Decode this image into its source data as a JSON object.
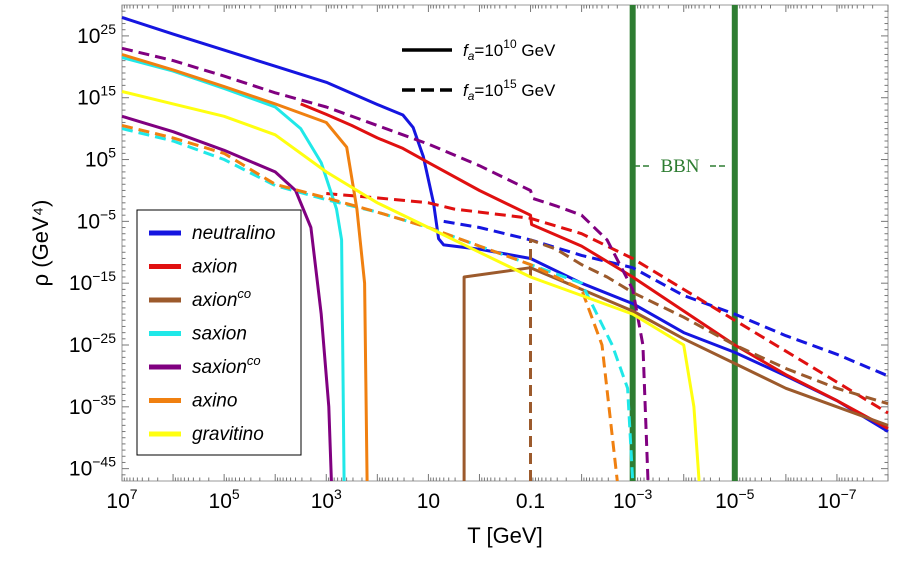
{
  "chart_data": {
    "type": "line",
    "title": "",
    "xlabel": "T  [GeV]",
    "ylabel": "ρ (GeV⁴)",
    "xscale": "log-reversed",
    "yscale": "log",
    "x_log10_range": [
      7,
      -8
    ],
    "y_log10_range": [
      -47,
      30
    ],
    "x_ticks": [
      {
        "base": "10",
        "exp": "7",
        "log10": 7
      },
      {
        "base": "10",
        "exp": "5",
        "log10": 5
      },
      {
        "base": "10",
        "exp": "3",
        "log10": 3
      },
      {
        "base": "10",
        "exp": "",
        "log10": 1
      },
      {
        "base": "0.1",
        "exp": "",
        "log10": -1
      },
      {
        "base": "10",
        "exp": "−3",
        "log10": -3
      },
      {
        "base": "10",
        "exp": "−5",
        "log10": -5
      },
      {
        "base": "10",
        "exp": "−7",
        "log10": -7
      }
    ],
    "y_ticks": [
      {
        "base": "10",
        "exp": "25",
        "log10": 25
      },
      {
        "base": "10",
        "exp": "15",
        "log10": 15
      },
      {
        "base": "10",
        "exp": "5",
        "log10": 5
      },
      {
        "base": "10",
        "exp": "−5",
        "log10": -5
      },
      {
        "base": "10",
        "exp": "−15",
        "log10": -15
      },
      {
        "base": "10",
        "exp": "−25",
        "log10": -25
      },
      {
        "base": "10",
        "exp": "−35",
        "log10": -35
      },
      {
        "base": "10",
        "exp": "−45",
        "log10": -45
      }
    ],
    "bbn": {
      "label": "BBN",
      "log10T_high": -3,
      "log10T_low": -5,
      "color": "#2e7d32"
    },
    "line_styles": [
      {
        "style": "solid",
        "label": "f",
        "sub": "a",
        "mid": "=10",
        "sup": "10",
        "unit": " GeV"
      },
      {
        "style": "dashed",
        "label": "f",
        "sub": "a",
        "mid": "=10",
        "sup": "15",
        "unit": " GeV"
      }
    ],
    "series": [
      {
        "name": "neutralino",
        "sup": "",
        "color": "#1515e0",
        "solid": [
          [
            7,
            28
          ],
          [
            6,
            25.3
          ],
          [
            5,
            22.7
          ],
          [
            4,
            20.1
          ],
          [
            3,
            17.5
          ],
          [
            2,
            13.9
          ],
          [
            1.5,
            12.2
          ],
          [
            1.3,
            10.2
          ],
          [
            1.1,
            5.5
          ],
          [
            0.9,
            -2
          ],
          [
            0.8,
            -7.8
          ],
          [
            0.7,
            -8.8
          ],
          [
            0,
            -9.5
          ],
          [
            -1,
            -11
          ],
          [
            -2,
            -15
          ],
          [
            -3,
            -18.3
          ],
          [
            -4,
            -23
          ],
          [
            -5,
            -26.2
          ],
          [
            -6,
            -30
          ],
          [
            -7,
            -34
          ],
          [
            -8,
            -39
          ]
        ],
        "dashed": [
          [
            0.7,
            -5
          ],
          [
            0,
            -6
          ],
          [
            -1,
            -8
          ],
          [
            -2,
            -10.5
          ],
          [
            -3,
            -12.5
          ],
          [
            -4,
            -17
          ],
          [
            -5,
            -20
          ],
          [
            -6,
            -23.5
          ],
          [
            -7,
            -26.5
          ],
          [
            -8,
            -30
          ]
        ]
      },
      {
        "name": "axion",
        "sup": "",
        "color": "#e01010",
        "solid": [
          [
            3.5,
            14
          ],
          [
            3,
            12.3
          ],
          [
            2.5,
            10.5
          ],
          [
            2,
            8.5
          ],
          [
            1.5,
            6.8
          ],
          [
            1,
            4.5
          ],
          [
            0,
            0
          ],
          [
            -1,
            -4
          ],
          [
            -1.02,
            -5.5
          ],
          [
            -2,
            -9
          ],
          [
            -3,
            -14
          ],
          [
            -4,
            -19.5
          ],
          [
            -5,
            -25
          ],
          [
            -6,
            -29.8
          ],
          [
            -7,
            -34
          ],
          [
            -8,
            -38.5
          ]
        ],
        "dashed": [
          [
            3,
            -0.5
          ],
          [
            2,
            -1.2
          ],
          [
            1,
            -2
          ],
          [
            0.5,
            -3
          ],
          [
            0,
            -3.5
          ],
          [
            -1,
            -4.5
          ],
          [
            -2,
            -7
          ],
          [
            -3,
            -11
          ],
          [
            -4,
            -16
          ],
          [
            -5,
            -21
          ],
          [
            -6,
            -26
          ],
          [
            -7,
            -31
          ],
          [
            -8,
            -36
          ]
        ]
      },
      {
        "name": "axion",
        "sup": "co",
        "color": "#9c5a2c",
        "solid": [
          [
            0.3,
            -47
          ],
          [
            0.3,
            -14
          ],
          [
            -1,
            -12.5
          ],
          [
            -2,
            -16
          ],
          [
            -3,
            -19.5
          ],
          [
            -4,
            -24
          ],
          [
            -5,
            -28
          ],
          [
            -6,
            -32
          ],
          [
            -7,
            -35
          ],
          [
            -8,
            -38
          ]
        ],
        "dashed": [
          [
            -1,
            -47
          ],
          [
            -1,
            -8
          ],
          [
            -1.5,
            -9.5
          ],
          [
            -2,
            -12
          ],
          [
            -2.5,
            -14
          ],
          [
            -3,
            -16.5
          ],
          [
            -4,
            -20.5
          ],
          [
            -5,
            -25
          ],
          [
            -6,
            -28.8
          ],
          [
            -7,
            -32
          ],
          [
            -8,
            -34.5
          ]
        ]
      },
      {
        "name": "saxion",
        "sup": "",
        "color": "#20e8e8",
        "solid": [
          [
            7,
            21.5
          ],
          [
            6,
            19.3
          ],
          [
            5,
            16.5
          ],
          [
            4,
            13.5
          ],
          [
            3.5,
            10
          ],
          [
            3.1,
            4.5
          ],
          [
            2.8,
            -3
          ],
          [
            2.7,
            -8
          ],
          [
            2.65,
            -47
          ]
        ],
        "dashed": [
          [
            7,
            10
          ],
          [
            6,
            8
          ],
          [
            5,
            5
          ],
          [
            4,
            0.8
          ],
          [
            3,
            -1.5
          ],
          [
            2,
            -3.5
          ],
          [
            1,
            -6
          ],
          [
            0,
            -9
          ],
          [
            -1,
            -12
          ],
          [
            -2,
            -15
          ],
          [
            -2.6,
            -25
          ],
          [
            -2.9,
            -32
          ],
          [
            -3,
            -47
          ]
        ]
      },
      {
        "name": "saxion",
        "sup": "co",
        "color": "#800080",
        "solid": [
          [
            7,
            12
          ],
          [
            6,
            9.5
          ],
          [
            5,
            6.5
          ],
          [
            4,
            3
          ],
          [
            3.6,
            0
          ],
          [
            3.3,
            -6
          ],
          [
            3.1,
            -20
          ],
          [
            2.95,
            -35
          ],
          [
            2.9,
            -47
          ]
        ],
        "dashed": [
          [
            7,
            23
          ],
          [
            6,
            21
          ],
          [
            5,
            18.5
          ],
          [
            4,
            15.8
          ],
          [
            3,
            13.5
          ],
          [
            2,
            10.5
          ],
          [
            1,
            7.5
          ],
          [
            0,
            4
          ],
          [
            -1,
            0
          ],
          [
            -1.05,
            -1.3
          ],
          [
            -1.5,
            -2.5
          ],
          [
            -2,
            -4
          ],
          [
            -2.5,
            -8
          ],
          [
            -3,
            -16
          ],
          [
            -3.2,
            -25
          ],
          [
            -3.3,
            -47
          ]
        ]
      },
      {
        "name": "axino",
        "sup": "",
        "color": "#f08010",
        "solid": [
          [
            7,
            22
          ],
          [
            6,
            19.5
          ],
          [
            5,
            16.8
          ],
          [
            4,
            14
          ],
          [
            3,
            11
          ],
          [
            2.6,
            7
          ],
          [
            2.4,
            -3
          ],
          [
            2.25,
            -15
          ],
          [
            2.2,
            -47
          ]
        ],
        "dashed": [
          [
            7,
            10.5
          ],
          [
            6,
            8.5
          ],
          [
            5,
            6
          ],
          [
            4,
            1
          ],
          [
            3,
            -1.2
          ],
          [
            2,
            -3.5
          ],
          [
            1,
            -6
          ],
          [
            0,
            -9
          ],
          [
            -1,
            -12
          ],
          [
            -2,
            -16
          ],
          [
            -2.4,
            -25
          ],
          [
            -2.7,
            -47
          ]
        ]
      },
      {
        "name": "gravitino",
        "sup": "",
        "color": "#ffff10",
        "solid": [
          [
            7,
            16
          ],
          [
            6,
            14
          ],
          [
            5,
            12
          ],
          [
            4,
            9
          ],
          [
            3,
            3
          ],
          [
            2,
            -2
          ],
          [
            1,
            -6
          ],
          [
            0,
            -10
          ],
          [
            -1,
            -14
          ],
          [
            -2,
            -17
          ],
          [
            -3,
            -20
          ],
          [
            -4,
            -25
          ],
          [
            -4.2,
            -35
          ],
          [
            -4.3,
            -47
          ]
        ],
        "dashed": []
      }
    ]
  }
}
